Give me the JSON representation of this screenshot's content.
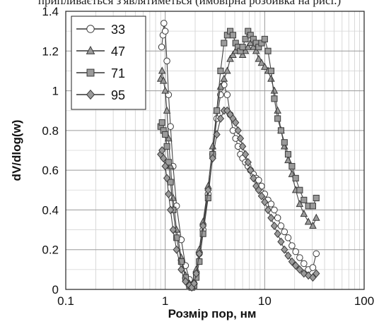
{
  "caption": "припливається з'являтиметься (ймовірна розбивка на рисі.)",
  "chart_data": {
    "type": "scatter",
    "xscale": "log",
    "xlim": [
      0.1,
      100
    ],
    "ylim": [
      0,
      1.4
    ],
    "xlabel": "Розмір пор, нм",
    "ylabel": "dV/dlog(w)",
    "xticks": [
      "0.1",
      "1",
      "10",
      "100"
    ],
    "yticks": [
      "0",
      "0.2",
      "0.4",
      "0.6",
      "0.8",
      "1",
      "1.2",
      "1.4"
    ],
    "grid": true,
    "legend_position": "top-left",
    "series": [
      {
        "name": "33",
        "marker": "circle",
        "x": [
          0.92,
          0.95,
          0.97,
          1.0,
          1.04,
          1.08,
          1.13,
          1.2,
          1.3,
          1.45,
          1.6,
          1.75,
          1.85,
          1.95,
          2.05,
          2.2,
          2.4,
          2.7,
          3.0,
          3.3,
          3.6,
          3.9,
          4.2,
          4.5,
          4.8,
          5.1,
          5.4,
          5.7,
          6.0,
          6.4,
          6.8,
          7.2,
          7.7,
          8.2,
          8.7,
          9.3,
          10.0,
          10.8,
          11.6,
          12.5,
          13.5,
          14.6,
          15.8,
          17.2,
          18.8,
          20.5,
          22.5,
          24.8,
          27.5,
          30.5,
          33.0
        ],
        "y": [
          1.22,
          1.28,
          1.34,
          1.3,
          1.15,
          0.98,
          0.82,
          0.62,
          0.42,
          0.25,
          0.12,
          0.05,
          0.02,
          0.03,
          0.08,
          0.18,
          0.3,
          0.48,
          0.68,
          0.86,
          0.98,
          1.03,
          0.98,
          0.88,
          0.8,
          0.76,
          0.72,
          0.68,
          0.66,
          0.64,
          0.62,
          0.6,
          0.58,
          0.56,
          0.55,
          0.52,
          0.48,
          0.45,
          0.43,
          0.4,
          0.36,
          0.32,
          0.29,
          0.26,
          0.22,
          0.19,
          0.16,
          0.13,
          0.1,
          0.11,
          0.18
        ]
      },
      {
        "name": "47",
        "marker": "triangle",
        "x": [
          0.9,
          0.93,
          0.96,
          1.0,
          1.04,
          1.08,
          1.13,
          1.2,
          1.3,
          1.45,
          1.6,
          1.75,
          1.85,
          1.95,
          2.05,
          2.2,
          2.4,
          2.7,
          3.0,
          3.3,
          3.6,
          3.9,
          4.2,
          4.5,
          4.8,
          5.1,
          5.4,
          5.7,
          6.0,
          6.4,
          6.8,
          7.2,
          7.7,
          8.2,
          8.7,
          9.3,
          10.0,
          10.8,
          11.6,
          12.5,
          13.5,
          14.6,
          15.8,
          17.2,
          18.8,
          20.5,
          22.5,
          24.8,
          27.5,
          30.5,
          33.0
        ],
        "y": [
          1.06,
          1.1,
          1.05,
          1.0,
          0.9,
          0.76,
          0.62,
          0.46,
          0.3,
          0.16,
          0.07,
          0.03,
          0.02,
          0.04,
          0.1,
          0.2,
          0.34,
          0.52,
          0.72,
          0.9,
          1.02,
          1.06,
          1.1,
          1.16,
          1.18,
          1.2,
          1.22,
          1.2,
          1.18,
          1.2,
          1.22,
          1.24,
          1.22,
          1.2,
          1.16,
          1.14,
          1.12,
          1.1,
          1.06,
          1.0,
          0.9,
          0.8,
          0.72,
          0.65,
          0.58,
          0.5,
          0.43,
          0.38,
          0.34,
          0.32,
          0.36
        ]
      },
      {
        "name": "71",
        "marker": "square",
        "x": [
          0.9,
          0.93,
          0.96,
          1.0,
          1.04,
          1.08,
          1.13,
          1.2,
          1.3,
          1.45,
          1.6,
          1.75,
          1.85,
          1.95,
          2.05,
          2.2,
          2.4,
          2.7,
          3.0,
          3.3,
          3.6,
          3.9,
          4.2,
          4.5,
          4.8,
          5.1,
          5.4,
          5.7,
          6.0,
          6.4,
          6.8,
          7.2,
          7.7,
          8.2,
          8.7,
          9.3,
          10.0,
          10.8,
          11.6,
          12.5,
          13.5,
          14.6,
          15.8,
          17.2,
          18.8,
          20.5,
          22.5,
          24.8,
          27.5,
          30.5,
          33.0
        ],
        "y": [
          0.82,
          0.84,
          0.8,
          0.78,
          0.72,
          0.64,
          0.54,
          0.4,
          0.26,
          0.14,
          0.06,
          0.02,
          0.01,
          0.02,
          0.06,
          0.14,
          0.28,
          0.46,
          0.68,
          0.9,
          1.1,
          1.24,
          1.28,
          1.3,
          1.28,
          1.24,
          1.22,
          1.2,
          1.22,
          1.26,
          1.3,
          1.28,
          1.26,
          1.24,
          1.22,
          1.24,
          1.26,
          1.2,
          1.1,
          0.96,
          0.86,
          0.8,
          0.74,
          0.68,
          0.62,
          0.56,
          0.5,
          0.45,
          0.42,
          0.42,
          0.46
        ]
      },
      {
        "name": "95",
        "marker": "diamond",
        "x": [
          0.9,
          0.93,
          0.96,
          1.0,
          1.04,
          1.08,
          1.13,
          1.2,
          1.3,
          1.45,
          1.6,
          1.75,
          1.85,
          1.95,
          2.05,
          2.2,
          2.4,
          2.7,
          3.0,
          3.3,
          3.6,
          3.9,
          4.2,
          4.5,
          4.8,
          5.1,
          5.4,
          5.7,
          6.0,
          6.4,
          6.8,
          7.2,
          7.7,
          8.2,
          8.7,
          9.3,
          10.0,
          10.8,
          11.6,
          12.5,
          13.5,
          14.6,
          15.8,
          17.2,
          18.8,
          20.5,
          22.5,
          24.8,
          27.5,
          30.5,
          33.0
        ],
        "y": [
          0.68,
          0.7,
          0.66,
          0.62,
          0.56,
          0.48,
          0.4,
          0.3,
          0.2,
          0.1,
          0.04,
          0.02,
          0.01,
          0.03,
          0.08,
          0.18,
          0.32,
          0.5,
          0.66,
          0.78,
          0.86,
          0.9,
          0.9,
          0.88,
          0.86,
          0.84,
          0.8,
          0.76,
          0.72,
          0.68,
          0.64,
          0.6,
          0.56,
          0.52,
          0.5,
          0.47,
          0.44,
          0.4,
          0.36,
          0.32,
          0.28,
          0.24,
          0.2,
          0.17,
          0.14,
          0.12,
          0.1,
          0.08,
          0.07,
          0.06,
          0.08
        ]
      }
    ]
  }
}
